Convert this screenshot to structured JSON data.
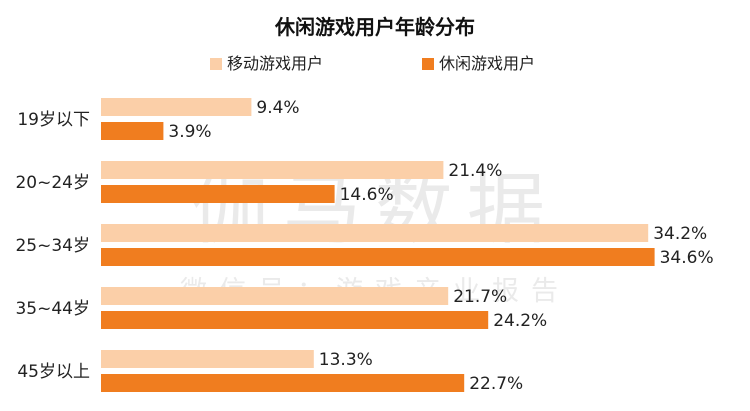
{
  "watermark": {
    "main": "伽马数据",
    "sub": "微信号：游戏产业报告"
  },
  "colors": {
    "series_light": "#fbcfa8",
    "series_dark": "#f07d1f"
  },
  "chart_data": {
    "type": "bar",
    "orientation": "horizontal",
    "title": "休闲游戏用户年龄分布",
    "categories": [
      "19岁以下",
      "20~24岁",
      "25~34岁",
      "35~44岁",
      "45岁以上"
    ],
    "series": [
      {
        "name": "移动游戏用户",
        "values": [
          9.4,
          21.4,
          34.2,
          21.7,
          13.3
        ],
        "labels": [
          "9.4%",
          "21.4%",
          "34.2%",
          "21.7%",
          "13.3%"
        ]
      },
      {
        "name": "休闲游戏用户",
        "values": [
          3.9,
          14.6,
          34.6,
          24.2,
          22.7
        ],
        "labels": [
          "3.9%",
          "14.6%",
          "34.6%",
          "24.2%",
          "22.7%"
        ]
      }
    ],
    "unit": "%",
    "xlim": [
      0,
      35
    ],
    "legend": "top-center",
    "grid": false
  }
}
